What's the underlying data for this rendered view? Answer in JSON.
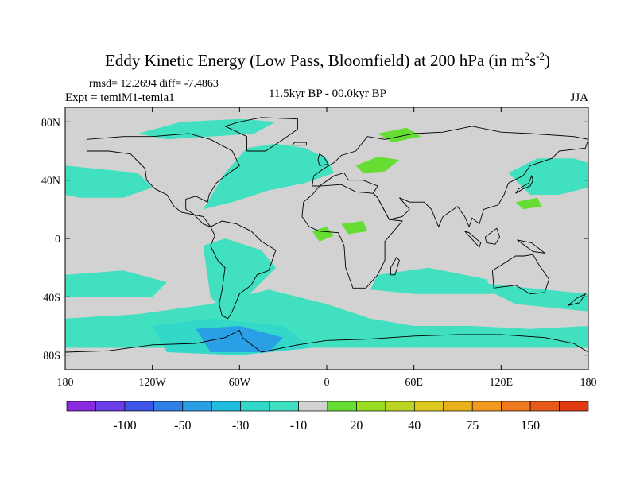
{
  "title": {
    "main": "Eddy Kinetic Energy (Low Pass, Bloomfield) at 200 hPa (in m",
    "sup1": "2",
    "mid": "s",
    "sup2": "-2",
    "close": ")"
  },
  "stats": "rmsd= 12.2694 diff= -7.4863",
  "experiment": "Expt = temiM1-temia1",
  "period": "11.5kyr BP - 00.0kyr BP",
  "season": "JJA",
  "map": {
    "projection": "cylindrical-equidistant",
    "lon_range": [
      -180,
      180
    ],
    "lat_range": [
      -90,
      90
    ],
    "background_color": "#d2d2d2",
    "coastline_color": "#000000",
    "x_ticks": [
      {
        "value": -180,
        "label": "180"
      },
      {
        "value": -120,
        "label": "120W"
      },
      {
        "value": -60,
        "label": "60W"
      },
      {
        "value": 0,
        "label": "0"
      },
      {
        "value": 60,
        "label": "60E"
      },
      {
        "value": 120,
        "label": "120E"
      },
      {
        "value": 180,
        "label": "180"
      }
    ],
    "y_ticks": [
      {
        "value": 80,
        "label": "80N"
      },
      {
        "value": 40,
        "label": "40N"
      },
      {
        "value": 0,
        "label": "0"
      },
      {
        "value": -40,
        "label": "40S"
      },
      {
        "value": -80,
        "label": "80S"
      }
    ]
  },
  "colorbar": {
    "colors": [
      "#8a2be2",
      "#6a3de6",
      "#3f55e8",
      "#2f7fe6",
      "#2a9fe6",
      "#22bcdc",
      "#33d8c8",
      "#40e0c0",
      "#d2d2d2",
      "#66dd33",
      "#99dd22",
      "#bbd322",
      "#ddc81e",
      "#e8b01a",
      "#f09a20",
      "#f07a20",
      "#e85a1a",
      "#e03a10"
    ],
    "labels": [
      {
        "after_index": 1,
        "text": "-100"
      },
      {
        "after_index": 3,
        "text": "-50"
      },
      {
        "after_index": 5,
        "text": "-30"
      },
      {
        "after_index": 7,
        "text": "-10"
      },
      {
        "after_index": 9,
        "text": "20"
      },
      {
        "after_index": 11,
        "text": "40"
      },
      {
        "after_index": 13,
        "text": "75"
      },
      {
        "after_index": 15,
        "text": "150"
      }
    ]
  },
  "fill_regions": [
    {
      "name": "n-atlantic",
      "color": "#40e0c0",
      "points": [
        [
          -85,
          20
        ],
        [
          -70,
          45
        ],
        [
          -55,
          62
        ],
        [
          -35,
          65
        ],
        [
          -15,
          62
        ],
        [
          0,
          55
        ],
        [
          5,
          45
        ],
        [
          -15,
          38
        ],
        [
          -40,
          33
        ],
        [
          -65,
          25
        ]
      ]
    },
    {
      "name": "n-pacific",
      "color": "#40e0c0",
      "points": [
        [
          -180,
          50
        ],
        [
          -160,
          48
        ],
        [
          -130,
          45
        ],
        [
          -120,
          35
        ],
        [
          -140,
          28
        ],
        [
          -170,
          28
        ],
        [
          -180,
          30
        ]
      ]
    },
    {
      "name": "arctic",
      "color": "#40e0c0",
      "points": [
        [
          -130,
          72
        ],
        [
          -100,
          80
        ],
        [
          -60,
          82
        ],
        [
          -35,
          80
        ],
        [
          -50,
          72
        ],
        [
          -80,
          70
        ],
        [
          -110,
          68
        ]
      ]
    },
    {
      "name": "w-pacific",
      "color": "#40e0c0",
      "points": [
        [
          125,
          45
        ],
        [
          145,
          55
        ],
        [
          170,
          55
        ],
        [
          180,
          52
        ],
        [
          180,
          35
        ],
        [
          160,
          30
        ],
        [
          140,
          30
        ]
      ]
    },
    {
      "name": "southern-ocean",
      "color": "#40e0c0",
      "points": [
        [
          -180,
          -55
        ],
        [
          -130,
          -52
        ],
        [
          -80,
          -45
        ],
        [
          -40,
          -35
        ],
        [
          0,
          -45
        ],
        [
          30,
          -55
        ],
        [
          60,
          -60
        ],
        [
          100,
          -60
        ],
        [
          140,
          -62
        ],
        [
          180,
          -60
        ],
        [
          180,
          -75
        ],
        [
          -180,
          -75
        ]
      ]
    },
    {
      "name": "south-america",
      "color": "#40e0c0",
      "points": [
        [
          -85,
          -5
        ],
        [
          -70,
          0
        ],
        [
          -45,
          -8
        ],
        [
          -35,
          -20
        ],
        [
          -55,
          -40
        ],
        [
          -70,
          -50
        ],
        [
          -80,
          -40
        ]
      ]
    },
    {
      "name": "s-pacific-band",
      "color": "#40e0c0",
      "points": [
        [
          -180,
          -25
        ],
        [
          -140,
          -22
        ],
        [
          -110,
          -30
        ],
        [
          -120,
          -40
        ],
        [
          -180,
          -40
        ]
      ]
    },
    {
      "name": "africa-band",
      "color": "#40e0c0",
      "points": [
        [
          35,
          -25
        ],
        [
          70,
          -20
        ],
        [
          110,
          -28
        ],
        [
          115,
          -38
        ],
        [
          60,
          -38
        ],
        [
          30,
          -35
        ]
      ]
    },
    {
      "name": "australia-band",
      "color": "#40e0c0",
      "points": [
        [
          100,
          -30
        ],
        [
          150,
          -35
        ],
        [
          180,
          -38
        ],
        [
          180,
          -50
        ],
        [
          130,
          -45
        ]
      ]
    },
    {
      "name": "antarctic-deep",
      "color": "#33d8c8",
      "points": [
        [
          -120,
          -60
        ],
        [
          -80,
          -55
        ],
        [
          -30,
          -60
        ],
        [
          -10,
          -75
        ],
        [
          -60,
          -80
        ],
        [
          -110,
          -78
        ]
      ]
    },
    {
      "name": "s-atlantic-deep",
      "color": "#2a9fe6",
      "points": [
        [
          -90,
          -62
        ],
        [
          -60,
          -60
        ],
        [
          -30,
          -68
        ],
        [
          -40,
          -78
        ],
        [
          -80,
          -78
        ]
      ]
    },
    {
      "name": "eurasia-green-1",
      "color": "#66dd33",
      "points": [
        [
          35,
          72
        ],
        [
          55,
          76
        ],
        [
          65,
          70
        ],
        [
          45,
          66
        ]
      ]
    },
    {
      "name": "eurasia-green-2",
      "color": "#66dd33",
      "points": [
        [
          20,
          50
        ],
        [
          35,
          56
        ],
        [
          50,
          54
        ],
        [
          40,
          46
        ],
        [
          25,
          45
        ]
      ]
    },
    {
      "name": "africa-green",
      "color": "#66dd33",
      "points": [
        [
          -10,
          5
        ],
        [
          0,
          8
        ],
        [
          5,
          2
        ],
        [
          -5,
          -2
        ]
      ]
    },
    {
      "name": "central-africa-green",
      "color": "#66dd33",
      "points": [
        [
          10,
          10
        ],
        [
          25,
          12
        ],
        [
          28,
          5
        ],
        [
          15,
          3
        ]
      ]
    },
    {
      "name": "w-pacific-green",
      "color": "#66dd33",
      "points": [
        [
          130,
          25
        ],
        [
          145,
          28
        ],
        [
          148,
          22
        ],
        [
          135,
          20
        ]
      ]
    }
  ],
  "coastlines": [
    {
      "name": "north-america",
      "points": [
        [
          -165,
          68
        ],
        [
          -140,
          70
        ],
        [
          -120,
          70
        ],
        [
          -95,
          72
        ],
        [
          -80,
          68
        ],
        [
          -65,
          60
        ],
        [
          -60,
          50
        ],
        [
          -70,
          43
        ],
        [
          -76,
          38
        ],
        [
          -81,
          30
        ],
        [
          -82,
          25
        ],
        [
          -90,
          29
        ],
        [
          -97,
          27
        ],
        [
          -97,
          20
        ],
        [
          -92,
          17
        ],
        [
          -85,
          10
        ],
        [
          -80,
          8
        ],
        [
          -85,
          15
        ],
        [
          -100,
          18
        ],
        [
          -105,
          22
        ],
        [
          -110,
          30
        ],
        [
          -118,
          34
        ],
        [
          -124,
          40
        ],
        [
          -125,
          48
        ],
        [
          -135,
          58
        ],
        [
          -150,
          60
        ],
        [
          -165,
          60
        ],
        [
          -165,
          68
        ]
      ]
    },
    {
      "name": "south-america",
      "points": [
        [
          -80,
          8
        ],
        [
          -77,
          2
        ],
        [
          -80,
          -5
        ],
        [
          -75,
          -15
        ],
        [
          -70,
          -20
        ],
        [
          -72,
          -35
        ],
        [
          -74,
          -45
        ],
        [
          -72,
          -53
        ],
        [
          -68,
          -55
        ],
        [
          -65,
          -50
        ],
        [
          -60,
          -38
        ],
        [
          -52,
          -32
        ],
        [
          -48,
          -25
        ],
        [
          -40,
          -22
        ],
        [
          -35,
          -8
        ],
        [
          -45,
          -2
        ],
        [
          -52,
          5
        ],
        [
          -62,
          10
        ],
        [
          -72,
          12
        ],
        [
          -80,
          8
        ]
      ]
    },
    {
      "name": "greenland",
      "points": [
        [
          -55,
          60
        ],
        [
          -42,
          60
        ],
        [
          -30,
          68
        ],
        [
          -20,
          75
        ],
        [
          -20,
          82
        ],
        [
          -45,
          83
        ],
        [
          -60,
          80
        ],
        [
          -70,
          77
        ],
        [
          -55,
          70
        ],
        [
          -55,
          60
        ]
      ]
    },
    {
      "name": "eurasia",
      "points": [
        [
          -10,
          36
        ],
        [
          -9,
          43
        ],
        [
          -2,
          48
        ],
        [
          5,
          52
        ],
        [
          10,
          57
        ],
        [
          20,
          60
        ],
        [
          28,
          70
        ],
        [
          40,
          68
        ],
        [
          60,
          72
        ],
        [
          80,
          73
        ],
        [
          100,
          77
        ],
        [
          120,
          73
        ],
        [
          140,
          72
        ],
        [
          170,
          70
        ],
        [
          180,
          68
        ],
        [
          178,
          62
        ],
        [
          160,
          60
        ],
        [
          155,
          55
        ],
        [
          140,
          50
        ],
        [
          135,
          43
        ],
        [
          125,
          38
        ],
        [
          122,
          30
        ],
        [
          118,
          23
        ],
        [
          108,
          20
        ],
        [
          105,
          10
        ],
        [
          100,
          14
        ],
        [
          98,
          8
        ],
        [
          95,
          15
        ],
        [
          90,
          22
        ],
        [
          80,
          15
        ],
        [
          77,
          8
        ],
        [
          72,
          20
        ],
        [
          67,
          25
        ],
        [
          57,
          25
        ],
        [
          50,
          28
        ],
        [
          57,
          20
        ],
        [
          52,
          15
        ],
        [
          43,
          13
        ],
        [
          35,
          28
        ],
        [
          32,
          31
        ],
        [
          35,
          36
        ],
        [
          25,
          40
        ],
        [
          15,
          40
        ],
        [
          12,
          45
        ],
        [
          5,
          43
        ],
        [
          -5,
          36
        ],
        [
          -10,
          36
        ]
      ]
    },
    {
      "name": "africa",
      "points": [
        [
          -17,
          15
        ],
        [
          -16,
          25
        ],
        [
          -10,
          30
        ],
        [
          -5,
          36
        ],
        [
          10,
          37
        ],
        [
          20,
          32
        ],
        [
          32,
          31
        ],
        [
          35,
          28
        ],
        [
          43,
          13
        ],
        [
          52,
          12
        ],
        [
          40,
          -2
        ],
        [
          40,
          -15
        ],
        [
          35,
          -25
        ],
        [
          27,
          -34
        ],
        [
          18,
          -34
        ],
        [
          13,
          -20
        ],
        [
          12,
          -5
        ],
        [
          8,
          4
        ],
        [
          -5,
          5
        ],
        [
          -12,
          8
        ],
        [
          -17,
          15
        ]
      ]
    },
    {
      "name": "australia",
      "points": [
        [
          114,
          -22
        ],
        [
          115,
          -34
        ],
        [
          130,
          -32
        ],
        [
          140,
          -38
        ],
        [
          150,
          -37
        ],
        [
          153,
          -28
        ],
        [
          146,
          -18
        ],
        [
          142,
          -11
        ],
        [
          136,
          -12
        ],
        [
          130,
          -12
        ],
        [
          122,
          -17
        ],
        [
          114,
          -22
        ]
      ]
    },
    {
      "name": "antarctica",
      "points": [
        [
          -180,
          -78
        ],
        [
          -150,
          -77
        ],
        [
          -120,
          -73
        ],
        [
          -90,
          -72
        ],
        [
          -70,
          -68
        ],
        [
          -60,
          -63
        ],
        [
          -58,
          -68
        ],
        [
          -45,
          -78
        ],
        [
          -20,
          -73
        ],
        [
          0,
          -70
        ],
        [
          30,
          -69
        ],
        [
          60,
          -67
        ],
        [
          90,
          -66
        ],
        [
          120,
          -66
        ],
        [
          150,
          -68
        ],
        [
          170,
          -72
        ],
        [
          180,
          -78
        ]
      ]
    },
    {
      "name": "uk",
      "points": [
        [
          -5,
          50
        ],
        [
          1,
          51
        ],
        [
          -2,
          56
        ],
        [
          -5,
          58
        ],
        [
          -6,
          54
        ],
        [
          -5,
          50
        ]
      ]
    },
    {
      "name": "madagascar",
      "points": [
        [
          44,
          -25
        ],
        [
          47,
          -25
        ],
        [
          50,
          -15
        ],
        [
          48,
          -13
        ],
        [
          44,
          -20
        ],
        [
          44,
          -25
        ]
      ]
    },
    {
      "name": "japan",
      "points": [
        [
          130,
          31
        ],
        [
          135,
          34
        ],
        [
          140,
          36
        ],
        [
          142,
          40
        ],
        [
          141,
          43
        ],
        [
          139,
          38
        ],
        [
          132,
          34
        ],
        [
          130,
          31
        ]
      ]
    },
    {
      "name": "new-zealand",
      "points": [
        [
          166,
          -46
        ],
        [
          172,
          -41
        ],
        [
          178,
          -38
        ],
        [
          174,
          -44
        ],
        [
          166,
          -46
        ]
      ]
    },
    {
      "name": "iceland",
      "points": [
        [
          -24,
          64
        ],
        [
          -14,
          64
        ],
        [
          -14,
          66
        ],
        [
          -22,
          66
        ],
        [
          -24,
          64
        ]
      ]
    },
    {
      "name": "borneo",
      "points": [
        [
          109,
          1
        ],
        [
          117,
          7
        ],
        [
          119,
          1
        ],
        [
          116,
          -4
        ],
        [
          110,
          -3
        ],
        [
          109,
          1
        ]
      ]
    },
    {
      "name": "sumatra",
      "points": [
        [
          95,
          5
        ],
        [
          105,
          -6
        ],
        [
          106,
          -3
        ],
        [
          98,
          4
        ],
        [
          95,
          5
        ]
      ]
    },
    {
      "name": "new-guinea",
      "points": [
        [
          131,
          -1
        ],
        [
          141,
          -3
        ],
        [
          150,
          -10
        ],
        [
          142,
          -9
        ],
        [
          131,
          -1
        ]
      ]
    }
  ]
}
